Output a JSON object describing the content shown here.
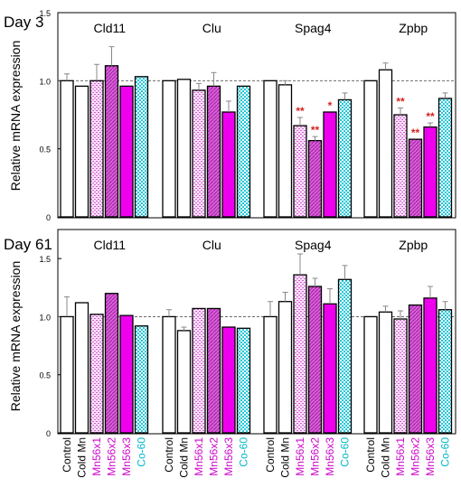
{
  "colors": {
    "control": "#ffffff",
    "cold_mn": "#ffffff",
    "mn56x1": "#f0a8f0",
    "mn56x2": "#cc44cc",
    "mn56x3": "#ee00ee",
    "co60": "#22c8d8",
    "sig": "#d42020",
    "label_black": "#000000",
    "label_mn": "#cc00cc",
    "label_co": "#00b8c8"
  },
  "legend_labels": [
    "Control",
    "Cold Mn",
    "Mn56x1",
    "Mn56x2",
    "Mn56x3",
    "Co-60"
  ],
  "chart_data": [
    {
      "type": "bar",
      "panel_title": "Day 3",
      "ylabel": "Relative mRNA expression",
      "ylim": [
        0,
        1.5
      ],
      "yticks": [
        "0",
        "0.5",
        "1.0",
        "1.5"
      ],
      "reference_line": 1.0,
      "groups": [
        "Cld11",
        "Clu",
        "Spag4",
        "Zpbp"
      ],
      "series": [
        {
          "name": "Control",
          "values": [
            1.0,
            1.0,
            1.0,
            1.0
          ],
          "err": [
            0.05,
            0.0,
            0.0,
            0.0
          ]
        },
        {
          "name": "Cold Mn",
          "values": [
            0.96,
            1.01,
            0.97,
            1.08
          ],
          "err": [
            0.0,
            0.0,
            0.03,
            0.05
          ]
        },
        {
          "name": "Mn56x1",
          "values": [
            1.0,
            0.93,
            0.67,
            0.75
          ],
          "err": [
            0.12,
            0.05,
            0.06,
            0.05
          ]
        },
        {
          "name": "Mn56x2",
          "values": [
            1.11,
            0.96,
            0.56,
            0.57
          ],
          "err": [
            0.14,
            0.1,
            0.03,
            0.0
          ]
        },
        {
          "name": "Mn56x3",
          "values": [
            0.96,
            0.77,
            0.77,
            0.66
          ],
          "err": [
            0.0,
            0.08,
            0.0,
            0.03
          ]
        },
        {
          "name": "Co-60",
          "values": [
            1.03,
            0.96,
            0.86,
            0.87
          ],
          "err": [
            0.0,
            0.0,
            0.05,
            0.04
          ]
        }
      ],
      "significance": [
        {
          "group": 2,
          "series": 2,
          "label": "**"
        },
        {
          "group": 2,
          "series": 3,
          "label": "**"
        },
        {
          "group": 2,
          "series": 4,
          "label": "*"
        },
        {
          "group": 3,
          "series": 2,
          "label": "**"
        },
        {
          "group": 3,
          "series": 3,
          "label": "**"
        },
        {
          "group": 3,
          "series": 4,
          "label": "**"
        }
      ]
    },
    {
      "type": "bar",
      "panel_title": "Day 61",
      "ylabel": "Relative mRNA expression",
      "ylim": [
        0,
        1.75
      ],
      "yticks": [
        "0",
        "0.5",
        "1.0",
        "1.5"
      ],
      "reference_line": 1.0,
      "groups": [
        "Cld11",
        "Clu",
        "Spag4",
        "Zpbp"
      ],
      "series": [
        {
          "name": "Control",
          "values": [
            1.0,
            1.0,
            1.0,
            1.0
          ],
          "err": [
            0.17,
            0.06,
            0.13,
            0.0
          ]
        },
        {
          "name": "Cold Mn",
          "values": [
            1.12,
            0.88,
            1.13,
            1.04
          ],
          "err": [
            0.0,
            0.03,
            0.08,
            0.05
          ]
        },
        {
          "name": "Mn56x1",
          "values": [
            1.02,
            1.07,
            1.36,
            0.98
          ],
          "err": [
            0.0,
            0.0,
            0.18,
            0.07
          ]
        },
        {
          "name": "Mn56x2",
          "values": [
            1.2,
            1.07,
            1.26,
            1.1
          ],
          "err": [
            0.0,
            0.0,
            0.07,
            0.0
          ]
        },
        {
          "name": "Mn56x3",
          "values": [
            1.01,
            0.91,
            1.11,
            1.16
          ],
          "err": [
            0.0,
            0.0,
            0.13,
            0.1
          ]
        },
        {
          "name": "Co-60",
          "values": [
            0.92,
            0.9,
            1.32,
            1.06
          ],
          "err": [
            0.0,
            0.0,
            0.12,
            0.07
          ]
        }
      ],
      "significance": []
    }
  ]
}
